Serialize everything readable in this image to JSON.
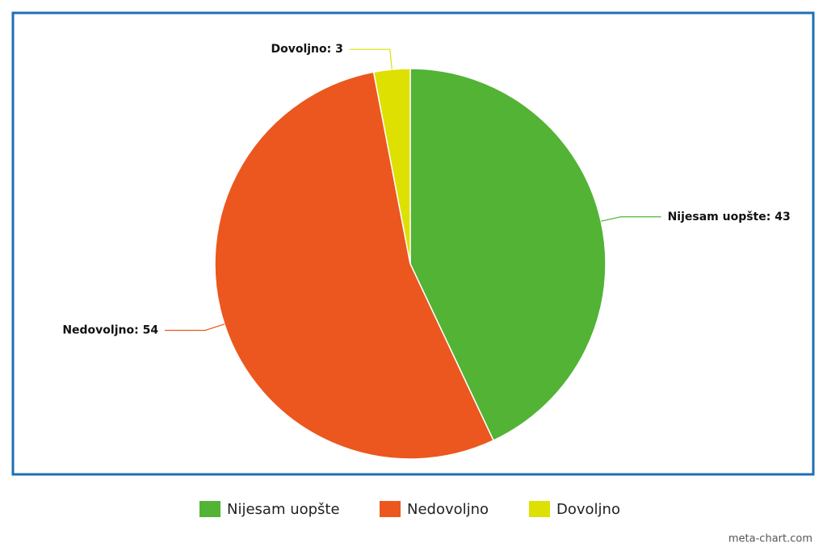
{
  "chart_data": {
    "type": "pie",
    "categories": [
      "Nijesam uopšte",
      "Nedovoljno",
      "Dovoljno"
    ],
    "values": [
      43,
      54,
      3
    ],
    "value_labels": [
      "Nijesam uopšte: 43",
      "Nedovoljno: 54",
      "Dovoljno: 3"
    ],
    "colors": [
      "#52b335",
      "#eb571e",
      "#dde000"
    ],
    "legend": "bottom",
    "credit": "meta-chart.com"
  }
}
